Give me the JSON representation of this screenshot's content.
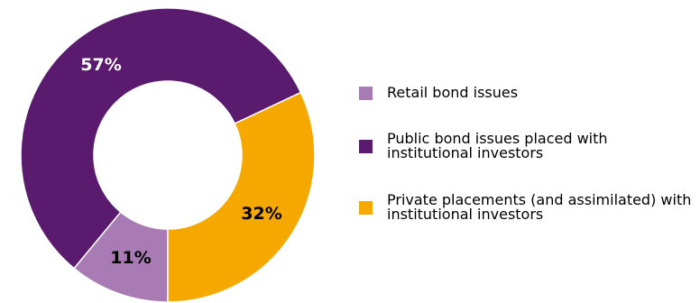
{
  "chart_data": {
    "type": "pie",
    "donut": true,
    "title": "",
    "slices": [
      {
        "label": "Retail bond issues",
        "value": 11,
        "value_label": "11%",
        "color": "#a87bb4",
        "label_color": "#000000"
      },
      {
        "label": "Public bond issues placed with institutional investors",
        "value": 57,
        "value_label": "57%",
        "color": "#5a1a6e",
        "label_color": "#ffffff"
      },
      {
        "label": "Private placements (and assimilated) with institutional investors",
        "value": 32,
        "value_label": "32%",
        "color": "#f5a800",
        "label_color": "#000000"
      }
    ],
    "legend_position": "right"
  },
  "legend": {
    "items": [
      {
        "label": "Retail bond issues",
        "color": "#a87bb4"
      },
      {
        "label": "Public bond issues placed with institutional investors",
        "color": "#5a1a6e"
      },
      {
        "label": "Private placements (and assimilated) with institutional investors",
        "color": "#f5a800"
      }
    ]
  }
}
